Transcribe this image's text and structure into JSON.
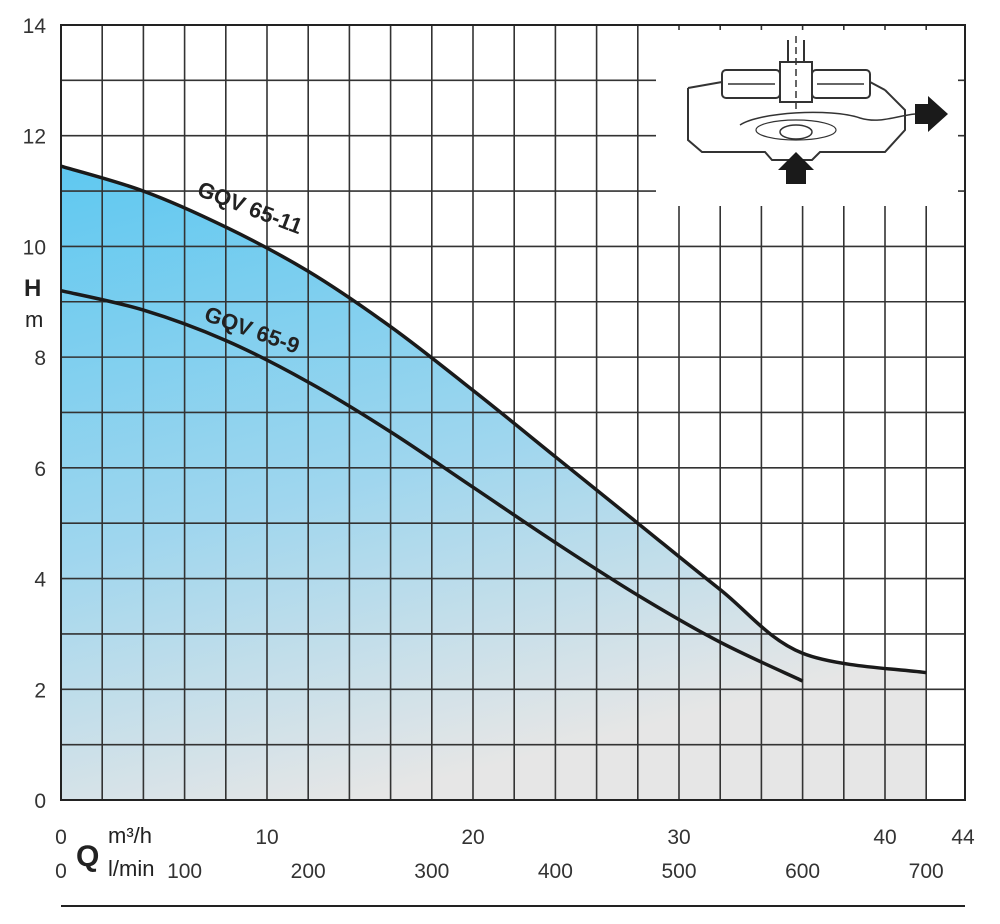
{
  "chart_data": {
    "type": "line",
    "title": "",
    "y_axis": {
      "label": "H",
      "unit": "m",
      "range": [
        0,
        14
      ],
      "ticks": [
        "0",
        "2",
        "4",
        "6",
        "8",
        "10",
        "12",
        "14"
      ]
    },
    "x_axis": {
      "label": "Q",
      "unit_primary": "m³/h",
      "unit_secondary": "l/min",
      "range": [
        0,
        42
      ],
      "ticks_primary": [
        "0",
        "10",
        "20",
        "30",
        "40",
        "44"
      ],
      "ticks_secondary": [
        "0",
        "100",
        "200",
        "300",
        "400",
        "500",
        "600",
        "700"
      ]
    },
    "grid": true,
    "series": [
      {
        "name": "GQV 65-11",
        "color": "#1a1a1a",
        "points": [
          [
            0,
            11.45
          ],
          [
            4,
            11.0
          ],
          [
            8,
            10.35
          ],
          [
            12,
            9.55
          ],
          [
            16,
            8.55
          ],
          [
            20,
            7.4
          ],
          [
            24,
            6.2
          ],
          [
            28,
            5.0
          ],
          [
            32,
            3.8
          ],
          [
            36,
            2.65
          ],
          [
            42,
            2.3
          ]
        ]
      },
      {
        "name": "GQV 65-9",
        "color": "#1a1a1a",
        "points": [
          [
            0,
            9.2
          ],
          [
            4,
            8.85
          ],
          [
            8,
            8.3
          ],
          [
            12,
            7.55
          ],
          [
            16,
            6.65
          ],
          [
            20,
            5.65
          ],
          [
            24,
            4.65
          ],
          [
            28,
            3.7
          ],
          [
            32,
            2.85
          ],
          [
            36,
            2.15
          ]
        ]
      }
    ],
    "fill": {
      "top_color": "#5fc8f0",
      "bottom_color": "#e4e4e4"
    },
    "inset": {
      "description_icon": "pump-impeller-diagram-icon"
    }
  }
}
